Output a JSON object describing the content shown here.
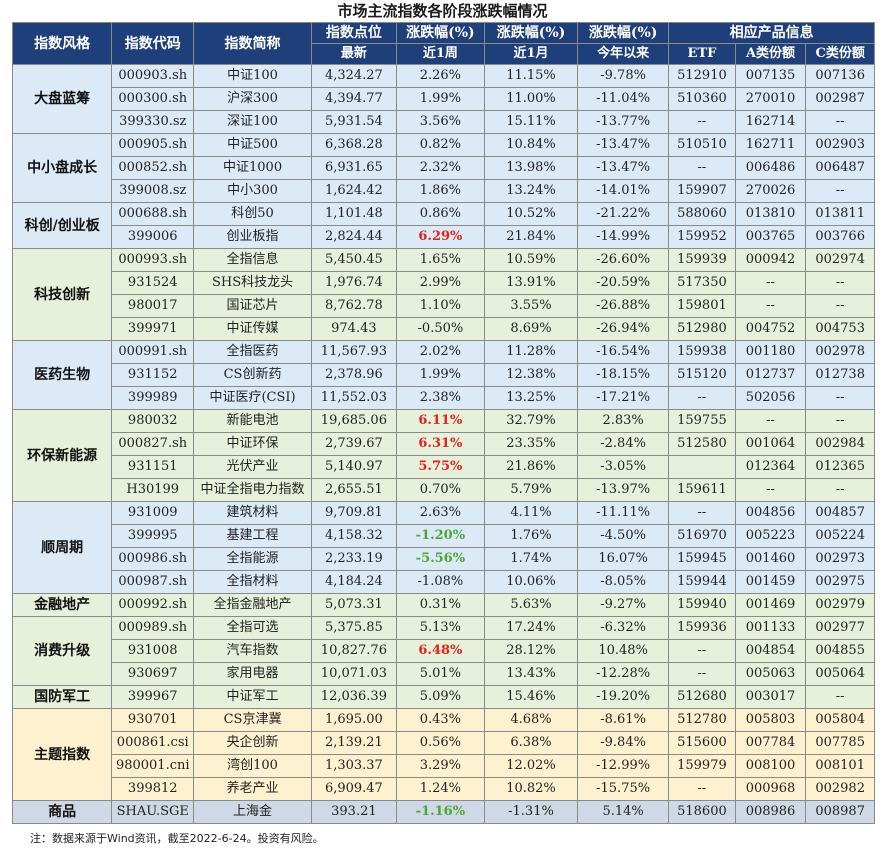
{
  "title": "市场主流指数各阶段涨跌幅情况",
  "headers": {
    "style": "指数风格",
    "code": "指数代码",
    "name": "指数简称",
    "points": "指数点位",
    "points_sub": "最新",
    "change_1w": "涨跌幅(%)",
    "change_1w_sub": "近1周",
    "change_1m": "涨跌幅(%)",
    "change_1m_sub": "近1月",
    "change_ytd": "涨跌幅(%)",
    "change_ytd_sub": "今年以来",
    "products": "相应产品信息",
    "etf": "ETF",
    "class_a": "A类份额",
    "class_c": "C类份额"
  },
  "groups": [
    {
      "style": "大盘蓝筹",
      "tone": "g0",
      "rows": [
        {
          "code": "000903.sh",
          "name": "中证100",
          "points": "4,324.27",
          "w1": "2.26%",
          "m1": "11.15%",
          "ytd": "-9.78%",
          "etf": "512910",
          "a": "007135",
          "c": "007136"
        },
        {
          "code": "000300.sh",
          "name": "沪深300",
          "points": "4,394.77",
          "w1": "1.99%",
          "m1": "11.00%",
          "ytd": "-11.04%",
          "etf": "510360",
          "a": "270010",
          "c": "002987"
        },
        {
          "code": "399330.sz",
          "name": "深证100",
          "points": "5,931.54",
          "w1": "3.56%",
          "m1": "15.11%",
          "ytd": "-13.77%",
          "etf": "--",
          "a": "162714",
          "c": "--"
        }
      ]
    },
    {
      "style": "中小盘成长",
      "tone": "g0",
      "rows": [
        {
          "code": "000905.sh",
          "name": "中证500",
          "points": "6,368.28",
          "w1": "0.82%",
          "m1": "10.84%",
          "ytd": "-13.47%",
          "etf": "510510",
          "a": "162711",
          "c": "002903"
        },
        {
          "code": "000852.sh",
          "name": "中证1000",
          "points": "6,931.65",
          "w1": "2.32%",
          "m1": "13.98%",
          "ytd": "-13.47%",
          "etf": "--",
          "a": "006486",
          "c": "006487"
        },
        {
          "code": "399008.sz",
          "name": "中小300",
          "points": "1,624.42",
          "w1": "1.86%",
          "m1": "13.24%",
          "ytd": "-14.01%",
          "etf": "159907",
          "a": "270026",
          "c": "--"
        }
      ]
    },
    {
      "style": "科创/创业板",
      "tone": "g0",
      "rows": [
        {
          "code": "000688.sh",
          "name": "科创50",
          "points": "1,101.48",
          "w1": "0.86%",
          "m1": "10.52%",
          "ytd": "-21.22%",
          "etf": "588060",
          "a": "013810",
          "c": "013811"
        },
        {
          "code": "399006",
          "name": "创业板指",
          "points": "2,824.44",
          "w1": "6.29%",
          "w1_hl": "up",
          "m1": "21.84%",
          "ytd": "-14.99%",
          "etf": "159952",
          "a": "003765",
          "c": "003766"
        }
      ]
    },
    {
      "style": "科技创新",
      "tone": "g1",
      "rows": [
        {
          "code": "000993.sh",
          "name": "全指信息",
          "points": "5,450.45",
          "w1": "1.65%",
          "m1": "10.59%",
          "ytd": "-26.60%",
          "etf": "159939",
          "a": "000942",
          "c": "002974"
        },
        {
          "code": "931524",
          "name": "SHS科技龙头",
          "points": "1,976.74",
          "w1": "2.99%",
          "m1": "13.91%",
          "ytd": "-20.59%",
          "etf": "517350",
          "a": "--",
          "c": "--"
        },
        {
          "code": "980017",
          "name": "国证芯片",
          "points": "8,762.78",
          "w1": "1.10%",
          "m1": "3.55%",
          "ytd": "-26.88%",
          "etf": "159801",
          "a": "--",
          "c": "--"
        },
        {
          "code": "399971",
          "name": "中证传媒",
          "points": "974.43",
          "w1": "-0.50%",
          "m1": "8.69%",
          "ytd": "-26.94%",
          "etf": "512980",
          "a": "004752",
          "c": "004753"
        }
      ]
    },
    {
      "style": "医药生物",
      "tone": "g0",
      "rows": [
        {
          "code": "000991.sh",
          "name": "全指医药",
          "points": "11,567.93",
          "w1": "2.02%",
          "m1": "11.28%",
          "ytd": "-16.54%",
          "etf": "159938",
          "a": "001180",
          "c": "002978"
        },
        {
          "code": "931152",
          "name": "CS创新药",
          "points": "2,378.96",
          "w1": "1.99%",
          "m1": "12.38%",
          "ytd": "-18.15%",
          "etf": "515120",
          "a": "012737",
          "c": "012738"
        },
        {
          "code": "399989",
          "name": "中证医疗(CSI)",
          "points": "11,552.03",
          "w1": "2.38%",
          "m1": "13.25%",
          "ytd": "-17.21%",
          "etf": "--",
          "a": "502056",
          "c": "--"
        }
      ]
    },
    {
      "style": "环保新能源",
      "tone": "g1",
      "rows": [
        {
          "code": "980032",
          "name": "新能电池",
          "points": "19,685.06",
          "w1": "6.11%",
          "w1_hl": "up",
          "m1": "32.79%",
          "ytd": "2.83%",
          "etf": "159755",
          "a": "--",
          "c": "--"
        },
        {
          "code": "000827.sh",
          "name": "中证环保",
          "points": "2,739.67",
          "w1": "6.31%",
          "w1_hl": "up",
          "m1": "23.35%",
          "ytd": "-2.84%",
          "etf": "512580",
          "a": "001064",
          "c": "002984"
        },
        {
          "code": "931151",
          "name": "光伏产业",
          "points": "5,140.97",
          "w1": "5.75%",
          "w1_hl": "up",
          "m1": "21.86%",
          "ytd": "-3.05%",
          "etf": "",
          "a": "012364",
          "c": "012365"
        },
        {
          "code": "H30199",
          "name": "中证全指电力指数",
          "points": "2,655.51",
          "w1": "0.70%",
          "m1": "5.79%",
          "ytd": "-13.97%",
          "etf": "159611",
          "a": "--",
          "c": "--"
        }
      ]
    },
    {
      "style": "顺周期",
      "tone": "g0",
      "rows": [
        {
          "code": "931009",
          "name": "建筑材料",
          "points": "9,709.81",
          "w1": "2.63%",
          "m1": "4.11%",
          "ytd": "-11.11%",
          "etf": "--",
          "a": "004856",
          "c": "004857"
        },
        {
          "code": "399995",
          "name": "基建工程",
          "points": "4,158.32",
          "w1": "-1.20%",
          "w1_hl": "down",
          "m1": "1.76%",
          "ytd": "-4.50%",
          "etf": "516970",
          "a": "005223",
          "c": "005224"
        },
        {
          "code": "000986.sh",
          "name": "全指能源",
          "points": "2,233.19",
          "w1": "-5.56%",
          "w1_hl": "down",
          "m1": "1.74%",
          "ytd": "16.07%",
          "etf": "159945",
          "a": "001460",
          "c": "002973"
        },
        {
          "code": "000987.sh",
          "name": "全指材料",
          "points": "4,184.24",
          "w1": "-1.08%",
          "m1": "10.06%",
          "ytd": "-8.05%",
          "etf": "159944",
          "a": "001459",
          "c": "002975"
        }
      ]
    },
    {
      "style": "金融地产",
      "tone": "g1",
      "rows": [
        {
          "code": "000992.sh",
          "name": "全指金融地产",
          "points": "5,073.31",
          "w1": "0.31%",
          "m1": "5.63%",
          "ytd": "-9.27%",
          "etf": "159940",
          "a": "001469",
          "c": "002979"
        }
      ]
    },
    {
      "style": "消费升级",
      "tone": "g1",
      "rows": [
        {
          "code": "000989.sh",
          "name": "全指可选",
          "points": "5,375.85",
          "w1": "5.13%",
          "m1": "17.24%",
          "ytd": "-6.32%",
          "etf": "159936",
          "a": "001133",
          "c": "002977"
        },
        {
          "code": "931008",
          "name": "汽车指数",
          "points": "10,827.76",
          "w1": "6.48%",
          "w1_hl": "up",
          "m1": "28.12%",
          "ytd": "10.48%",
          "etf": "--",
          "a": "004854",
          "c": "004855"
        },
        {
          "code": "930697",
          "name": "家用电器",
          "points": "10,071.03",
          "w1": "5.01%",
          "m1": "13.43%",
          "ytd": "-12.28%",
          "etf": "--",
          "a": "005063",
          "c": "005064"
        }
      ]
    },
    {
      "style": "国防军工",
      "tone": "g1",
      "rows": [
        {
          "code": "399967",
          "name": "中证军工",
          "points": "12,036.39",
          "w1": "5.09%",
          "m1": "15.46%",
          "ytd": "-19.20%",
          "etf": "512680",
          "a": "003017",
          "c": "--"
        }
      ]
    },
    {
      "style": "主题指数",
      "tone": "g2",
      "rows": [
        {
          "code": "930701",
          "name": "CS京津冀",
          "points": "1,695.00",
          "w1": "0.43%",
          "m1": "4.68%",
          "ytd": "-8.61%",
          "etf": "512780",
          "a": "005803",
          "c": "005804"
        },
        {
          "code": "000861.csi",
          "name": "央企创新",
          "points": "2,139.21",
          "w1": "0.56%",
          "m1": "6.38%",
          "ytd": "-9.84%",
          "etf": "515600",
          "a": "007784",
          "c": "007785"
        },
        {
          "code": "980001.cni",
          "name": "湾创100",
          "points": "1,303.37",
          "w1": "3.29%",
          "m1": "12.02%",
          "ytd": "-12.99%",
          "etf": "159979",
          "a": "008100",
          "c": "008101"
        },
        {
          "code": "399812",
          "name": "养老产业",
          "points": "6,909.47",
          "w1": "1.24%",
          "m1": "10.82%",
          "ytd": "-15.75%",
          "etf": "--",
          "a": "000968",
          "c": "002982"
        }
      ]
    },
    {
      "style": "商品",
      "tone": "g3",
      "rows": [
        {
          "code": "SHAU.SGE",
          "name": "上海金",
          "points": "393.21",
          "w1": "-1.16%",
          "w1_hl": "down",
          "m1": "-1.31%",
          "ytd": "5.14%",
          "etf": "518600",
          "a": "008986",
          "c": "008987"
        }
      ]
    }
  ],
  "footnote": "注：数据来源于Wind资讯，截至2022-6-24。投资有风险。"
}
